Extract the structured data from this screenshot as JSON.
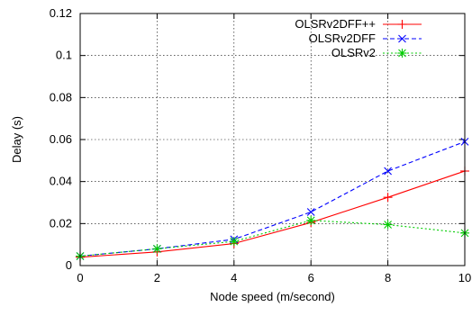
{
  "chart_data": {
    "type": "line",
    "xlabel": "Node speed (m/second)",
    "ylabel": "Delay (s)",
    "xlim": [
      0,
      10
    ],
    "ylim": [
      0,
      0.12
    ],
    "xticks": [
      0,
      2,
      4,
      6,
      8,
      10
    ],
    "xtick_labels": [
      "0",
      "2",
      "4",
      "6",
      "8",
      "10"
    ],
    "yticks": [
      0,
      0.02,
      0.04,
      0.06,
      0.08,
      0.1,
      0.12
    ],
    "ytick_labels": [
      "0",
      "0.02",
      "0.04",
      "0.06",
      "0.08",
      "0.1",
      "0.12"
    ],
    "grid": true,
    "legend_position": "top-right",
    "x": [
      0,
      2,
      4,
      6,
      8,
      10
    ],
    "series": [
      {
        "name": "OLSRv2DFF++",
        "color": "#ff0000",
        "marker": "plus",
        "dash": "solid",
        "values": [
          0.004,
          0.0065,
          0.0105,
          0.0205,
          0.0325,
          0.045
        ]
      },
      {
        "name": "OLSRv2DFF",
        "color": "#0000ff",
        "marker": "cross",
        "dash": "dashed",
        "values": [
          0.0045,
          0.008,
          0.0125,
          0.0255,
          0.045,
          0.059
        ]
      },
      {
        "name": "OLSRv2",
        "color": "#00cc00",
        "marker": "star",
        "dash": "dotted",
        "values": [
          0.0045,
          0.008,
          0.0115,
          0.0215,
          0.0195,
          0.0155
        ]
      }
    ]
  }
}
